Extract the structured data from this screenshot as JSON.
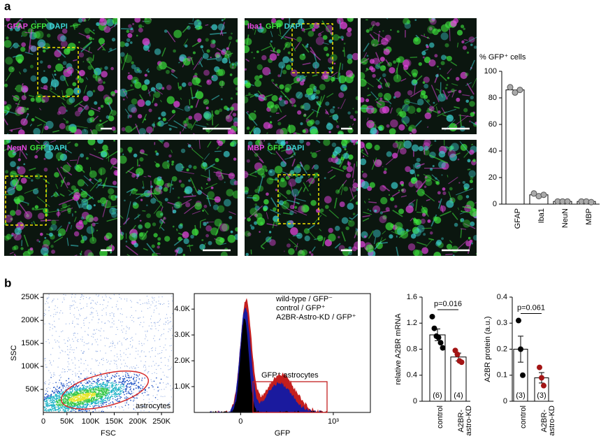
{
  "panel_labels": [
    "a",
    "b"
  ],
  "images": [
    {
      "channels": [
        "GFAP",
        "GFP",
        "DAPI"
      ],
      "colors": [
        "#e546e0",
        "#3ee83e",
        "#3cd2d2"
      ]
    },
    {
      "channels": [
        "Iba1",
        "GFP",
        "DAPI"
      ],
      "colors": [
        "#e546e0",
        "#3ee83e",
        "#3cd2d2"
      ]
    },
    {
      "channels": [
        "NeuN",
        "GFP",
        "DAPI"
      ],
      "colors": [
        "#e546e0",
        "#3ee83e",
        "#3cd2d2"
      ]
    },
    {
      "channels": [
        "MBP",
        "GFP",
        "DAPI"
      ],
      "colors": [
        "#e546e0",
        "#3ee83e",
        "#3cd2d2"
      ]
    }
  ],
  "chart_data": [
    {
      "type": "bar",
      "ylabel": "% GFP⁺ cells",
      "categories": [
        "GFAP",
        "Iba1",
        "NeuN",
        "MBP"
      ],
      "values": [
        86,
        7,
        2,
        2
      ],
      "points": [
        [
          88,
          84,
          86
        ],
        [
          8,
          6,
          7
        ],
        [
          2,
          2,
          2
        ],
        [
          2,
          2,
          1.5
        ]
      ],
      "color": "#ffffff",
      "point_colors": [
        "#aaaaaa",
        "#aaaaaa",
        "#aaaaaa",
        "#aaaaaa"
      ],
      "category_colors": [
        "#000000",
        "#000000",
        "#000000",
        "#000000"
      ],
      "ylim": [
        0,
        100
      ],
      "yticks": [
        0,
        20,
        40,
        60,
        80,
        100
      ]
    },
    {
      "type": "bar",
      "ylabel": "relative A2BR mRNA",
      "categories": [
        "control",
        "A2BR-astro-KD"
      ],
      "values": [
        1.02,
        0.68
      ],
      "errors": [
        0.09,
        0.06
      ],
      "points": [
        [
          1.3,
          1.12,
          1.0,
          0.98,
          0.9,
          0.82
        ],
        [
          0.78,
          0.72,
          0.62,
          0.6
        ]
      ],
      "color": "#ffffff",
      "point_colors": [
        "#000000",
        "#a31515"
      ],
      "category_colors": [
        "#000000",
        "#a31515"
      ],
      "n_labels": [
        "(6)",
        "(4)"
      ],
      "annotation": "p=0.016",
      "ylim": [
        0,
        1.6
      ],
      "yticks": [
        0,
        0.4,
        0.8,
        1.2,
        1.6
      ]
    },
    {
      "type": "bar",
      "ylabel": "A2BR protein (a.u.)",
      "categories": [
        "control",
        "A2BR-astro-KD"
      ],
      "values": [
        0.2,
        0.09
      ],
      "errors": [
        0.05,
        0.02
      ],
      "points": [
        [
          0.31,
          0.2,
          0.1
        ],
        [
          0.13,
          0.09,
          0.06
        ]
      ],
      "color": "#ffffff",
      "point_colors": [
        "#000000",
        "#a31515"
      ],
      "category_colors": [
        "#000000",
        "#a31515"
      ],
      "n_labels": [
        "(3)",
        "(3)"
      ],
      "annotation": "p=0.061",
      "ylim": [
        0,
        0.4
      ],
      "yticks": [
        0,
        0.1,
        0.2,
        0.3,
        0.4
      ]
    }
  ],
  "flow_scatter": {
    "xlabel": "FSC",
    "ylabel": "SSC",
    "gate_label": "astrocytes",
    "gate_color": "#d42a2a",
    "xlim": [
      0,
      275000
    ],
    "ylim": [
      0,
      258000
    ],
    "xticks": [
      0,
      {
        "value": 50000,
        "label": "50K"
      },
      {
        "value": 100000,
        "label": "100K"
      },
      {
        "value": 150000,
        "label": "150K"
      },
      {
        "value": 200000,
        "label": "200K"
      },
      {
        "value": 250000,
        "label": "250K"
      }
    ],
    "yticks": [
      {
        "value": 50000,
        "label": "50K"
      },
      {
        "value": 100000,
        "label": "100K"
      },
      {
        "value": 150000,
        "label": "150K"
      },
      {
        "value": 200000,
        "label": "200K"
      },
      {
        "value": 250000,
        "label": "250K"
      }
    ]
  },
  "flow_histogram": {
    "xlabel": "GFP",
    "gate_label": "GFP⁺ astrocytes",
    "gate_color": "#c41e1e",
    "series": [
      {
        "name": "wild-type / GFP⁻",
        "color": "#000000"
      },
      {
        "name": "control / GFP⁺",
        "color": "#1a1a9e"
      },
      {
        "name": "A2BR-Astro-KD / GFP⁺",
        "color": "#c41e1e"
      }
    ],
    "xlim": [
      -500,
      1400
    ],
    "ylim": [
      0,
      4600
    ],
    "xticks": [
      0,
      {
        "value": 1000,
        "label": "10³"
      }
    ],
    "yticks": [
      {
        "value": 1000,
        "label": "1.0K"
      },
      {
        "value": 2000,
        "label": "2.0K"
      },
      {
        "value": 3000,
        "label": "3.0K"
      },
      {
        "value": 4000,
        "label": "4.0K"
      }
    ]
  }
}
